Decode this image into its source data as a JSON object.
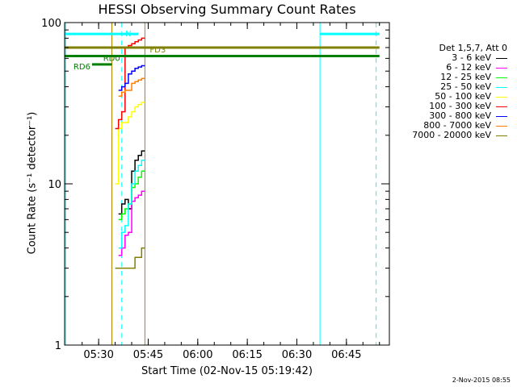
{
  "chart_data": {
    "type": "line",
    "title": "HESSI Observing Summary Count Rates",
    "xlabel": "Start Time (02-Nov-15 05:19:42)",
    "ylabel": "Count Rate (s⁻¹ detector⁻¹)",
    "yscale": "log",
    "ylim": [
      1,
      100
    ],
    "xlim": [
      "05:19:42",
      "06:58:00"
    ],
    "x_ticks": [
      "05:30",
      "05:45",
      "06:00",
      "06:15",
      "06:30",
      "06:45"
    ],
    "y_ticks": [
      "1",
      "10",
      "100"
    ],
    "grid": false,
    "legend_title": "Det 1,5,7, Att 0",
    "legend_position": "right",
    "series": [
      {
        "name": "3 - 6 keV",
        "color": "#000000",
        "x": [
          "05:36",
          "05:37",
          "05:38",
          "05:39",
          "05:40",
          "05:41",
          "05:42",
          "05:43"
        ],
        "y": [
          6.5,
          7.5,
          8.0,
          7.0,
          12.0,
          14.0,
          15.0,
          16.0
        ]
      },
      {
        "name": "6 - 12 keV",
        "color": "#ff00ff",
        "x": [
          "05:36",
          "05:37",
          "05:38",
          "05:39",
          "05:40",
          "05:41",
          "05:42",
          "05:43"
        ],
        "y": [
          3.6,
          4.0,
          4.8,
          5.0,
          7.8,
          8.2,
          8.5,
          9.0
        ]
      },
      {
        "name": "12 - 25 keV",
        "color": "#00ff00",
        "x": [
          "05:36",
          "05:37",
          "05:38",
          "05:39",
          "05:40",
          "05:41",
          "05:42",
          "05:43"
        ],
        "y": [
          6.0,
          6.5,
          7.0,
          7.5,
          9.5,
          10.0,
          11.0,
          12.0
        ]
      },
      {
        "name": "25 - 50 keV",
        "color": "#00ffff",
        "x": [
          "05:36",
          "05:37",
          "05:38",
          "05:39",
          "05:40",
          "05:41",
          "05:42",
          "05:43"
        ],
        "y": [
          4.0,
          5.0,
          5.5,
          7.5,
          10.0,
          12.0,
          13.0,
          14.0
        ]
      },
      {
        "name": "50 - 100 keV",
        "color": "#ffff00",
        "x": [
          "05:35",
          "05:36",
          "05:37",
          "05:38",
          "05:39",
          "05:40",
          "05:41",
          "05:42",
          "05:43"
        ],
        "y": [
          10.0,
          22.0,
          24.0,
          24.0,
          26.0,
          28.0,
          30.0,
          31.0,
          32.0
        ]
      },
      {
        "name": "100 - 300 keV",
        "color": "#ff0000",
        "x": [
          "05:35",
          "05:36",
          "05:37",
          "05:38",
          "05:39",
          "05:40",
          "05:41",
          "05:42",
          "05:43"
        ],
        "y": [
          22.0,
          25.0,
          28.0,
          70.0,
          72.0,
          74.0,
          76.0,
          78.0,
          80.0
        ]
      },
      {
        "name": "300 - 800 keV",
        "color": "#0000ff",
        "x": [
          "05:36",
          "05:37",
          "05:38",
          "05:39",
          "05:40",
          "05:41",
          "05:42",
          "05:43"
        ],
        "y": [
          38.0,
          40.0,
          42.0,
          48.0,
          50.0,
          52.0,
          53.0,
          54.0
        ]
      },
      {
        "name": "800 - 7000 keV",
        "color": "#ff8000",
        "x": [
          "05:36",
          "05:37",
          "05:38",
          "05:39",
          "05:40",
          "05:41",
          "05:42",
          "05:43"
        ],
        "y": [
          35.0,
          37.0,
          38.0,
          38.0,
          42.0,
          43.0,
          44.0,
          45.0
        ]
      },
      {
        "name": "7000 - 20000 keV",
        "color": "#808000",
        "x": [
          "05:35",
          "05:36",
          "05:37",
          "05:38",
          "05:39",
          "05:40",
          "05:41",
          "05:42",
          "05:43"
        ],
        "y": [
          3.0,
          3.0,
          3.0,
          3.0,
          3.0,
          3.0,
          3.5,
          3.5,
          4.0
        ]
      }
    ],
    "annotations": [
      {
        "label": "N",
        "color": "#00ffff",
        "x_start": "05:19:42",
        "x_end": "05:42",
        "y": 85,
        "kind": "flag-bar"
      },
      {
        "label": "",
        "color": "#00ffff",
        "x_start": "06:37",
        "x_end": "06:55",
        "y": 85,
        "kind": "flag-bar"
      },
      {
        "label": "FD3",
        "color": "#808000",
        "x_start": "05:19:42",
        "x_end": "06:55",
        "y": 70,
        "kind": "flag-bar"
      },
      {
        "label": "RD0",
        "color": "#008000",
        "x_start": "05:19:42",
        "x_end": "06:55",
        "y": 62,
        "kind": "flag-bar"
      },
      {
        "label": "RD6",
        "color": "#008000",
        "x_start": "05:28",
        "x_end": "05:34",
        "y": 55,
        "kind": "flag-bar"
      }
    ],
    "vertical_lines": [
      {
        "x": "05:20",
        "color": "#00ffff",
        "style": "solid"
      },
      {
        "x": "05:37",
        "color": "#00ffff",
        "style": "dashed"
      },
      {
        "x": "06:37",
        "color": "#00ffff",
        "style": "solid"
      },
      {
        "x": "06:54",
        "color": "#00ffff",
        "style": "dashed"
      },
      {
        "x": "05:34",
        "color": "#b08000",
        "style": "solid"
      },
      {
        "x": "05:44",
        "color": "#b08000",
        "style": "solid"
      }
    ],
    "timestamp": "2-Nov-2015 08:55"
  }
}
